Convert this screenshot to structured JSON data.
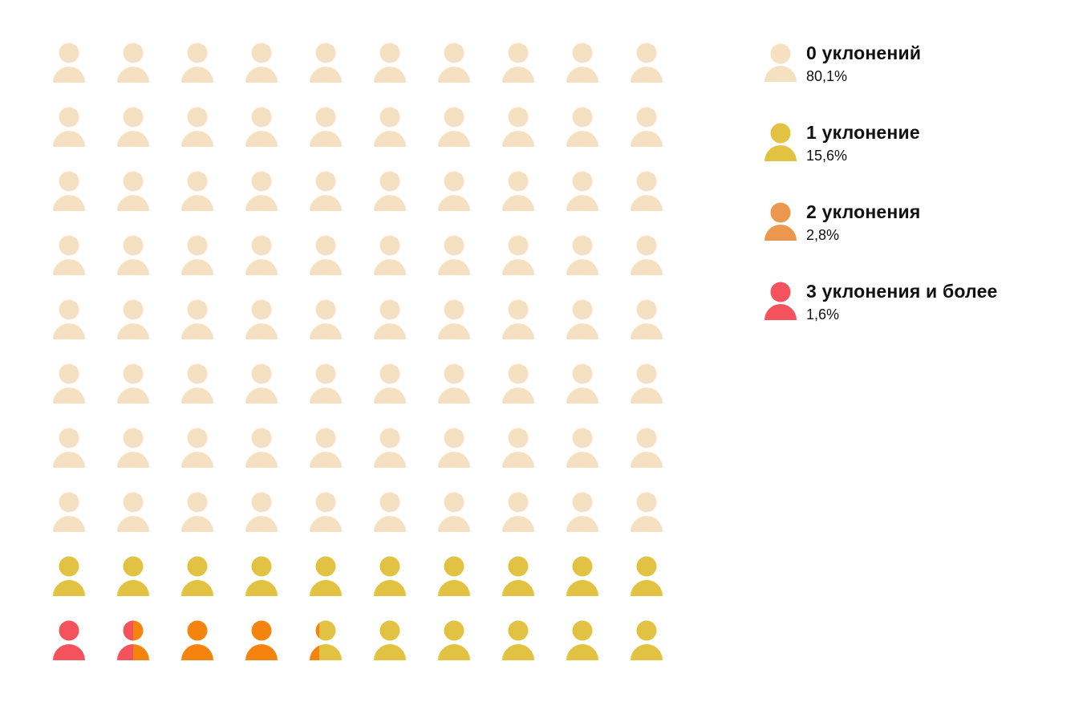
{
  "chart_data": {
    "type": "waffle",
    "grid": {
      "rows": 10,
      "cols": 10
    },
    "series": [
      {
        "name": "0 уклонений",
        "value_label": "80,1%",
        "value": 80.1,
        "color": "#f5e1c1"
      },
      {
        "name": "1 уклонение",
        "value_label": "15,6%",
        "value": 15.6,
        "color": "#e2c243"
      },
      {
        "name": "2 уклонения",
        "value_label": "2,8%",
        "value": 2.8,
        "color": "#f5840f"
      },
      {
        "name": "3 уклонения и более",
        "value_label": "1,6%",
        "value": 1.6,
        "color": "#f4525c"
      }
    ],
    "cells": [
      {
        "c": 0
      },
      {
        "c": 0
      },
      {
        "c": 0
      },
      {
        "c": 0
      },
      {
        "c": 0
      },
      {
        "c": 0
      },
      {
        "c": 0
      },
      {
        "c": 0
      },
      {
        "c": 0
      },
      {
        "c": 0
      },
      {
        "c": 0
      },
      {
        "c": 0
      },
      {
        "c": 0
      },
      {
        "c": 0
      },
      {
        "c": 0
      },
      {
        "c": 0
      },
      {
        "c": 0
      },
      {
        "c": 0
      },
      {
        "c": 0
      },
      {
        "c": 0
      },
      {
        "c": 0
      },
      {
        "c": 0
      },
      {
        "c": 0
      },
      {
        "c": 0
      },
      {
        "c": 0
      },
      {
        "c": 0
      },
      {
        "c": 0
      },
      {
        "c": 0
      },
      {
        "c": 0
      },
      {
        "c": 0
      },
      {
        "c": 0
      },
      {
        "c": 0
      },
      {
        "c": 0
      },
      {
        "c": 0
      },
      {
        "c": 0
      },
      {
        "c": 0
      },
      {
        "c": 0
      },
      {
        "c": 0
      },
      {
        "c": 0
      },
      {
        "c": 0
      },
      {
        "c": 0
      },
      {
        "c": 0
      },
      {
        "c": 0
      },
      {
        "c": 0
      },
      {
        "c": 0
      },
      {
        "c": 0
      },
      {
        "c": 0
      },
      {
        "c": 0
      },
      {
        "c": 0
      },
      {
        "c": 0
      },
      {
        "c": 0
      },
      {
        "c": 0
      },
      {
        "c": 0
      },
      {
        "c": 0
      },
      {
        "c": 0
      },
      {
        "c": 0
      },
      {
        "c": 0
      },
      {
        "c": 0
      },
      {
        "c": 0
      },
      {
        "c": 0
      },
      {
        "c": 0
      },
      {
        "c": 0
      },
      {
        "c": 0
      },
      {
        "c": 0
      },
      {
        "c": 0
      },
      {
        "c": 0
      },
      {
        "c": 0
      },
      {
        "c": 0
      },
      {
        "c": 0
      },
      {
        "c": 0
      },
      {
        "c": 0
      },
      {
        "c": 0
      },
      {
        "c": 0
      },
      {
        "c": 0
      },
      {
        "c": 0
      },
      {
        "c": 0
      },
      {
        "c": 0
      },
      {
        "c": 0
      },
      {
        "c": 0
      },
      {
        "c": 0
      },
      {
        "c": 1
      },
      {
        "c": 1
      },
      {
        "c": 1
      },
      {
        "c": 1
      },
      {
        "c": 1
      },
      {
        "c": 1
      },
      {
        "c": 1
      },
      {
        "c": 1
      },
      {
        "c": 1
      },
      {
        "c": 1
      },
      {
        "c": 3
      },
      {
        "c": 3,
        "c2": 2,
        "split": 0.5
      },
      {
        "c": 2
      },
      {
        "c": 2
      },
      {
        "c": 2,
        "c2": 1,
        "split": 0.3
      },
      {
        "c": 1
      },
      {
        "c": 1
      },
      {
        "c": 1
      },
      {
        "c": 1
      },
      {
        "c": 1
      }
    ]
  },
  "legend_colors": [
    "#f5e1c1",
    "#e2c243",
    "#eb974d",
    "#f4525c"
  ]
}
